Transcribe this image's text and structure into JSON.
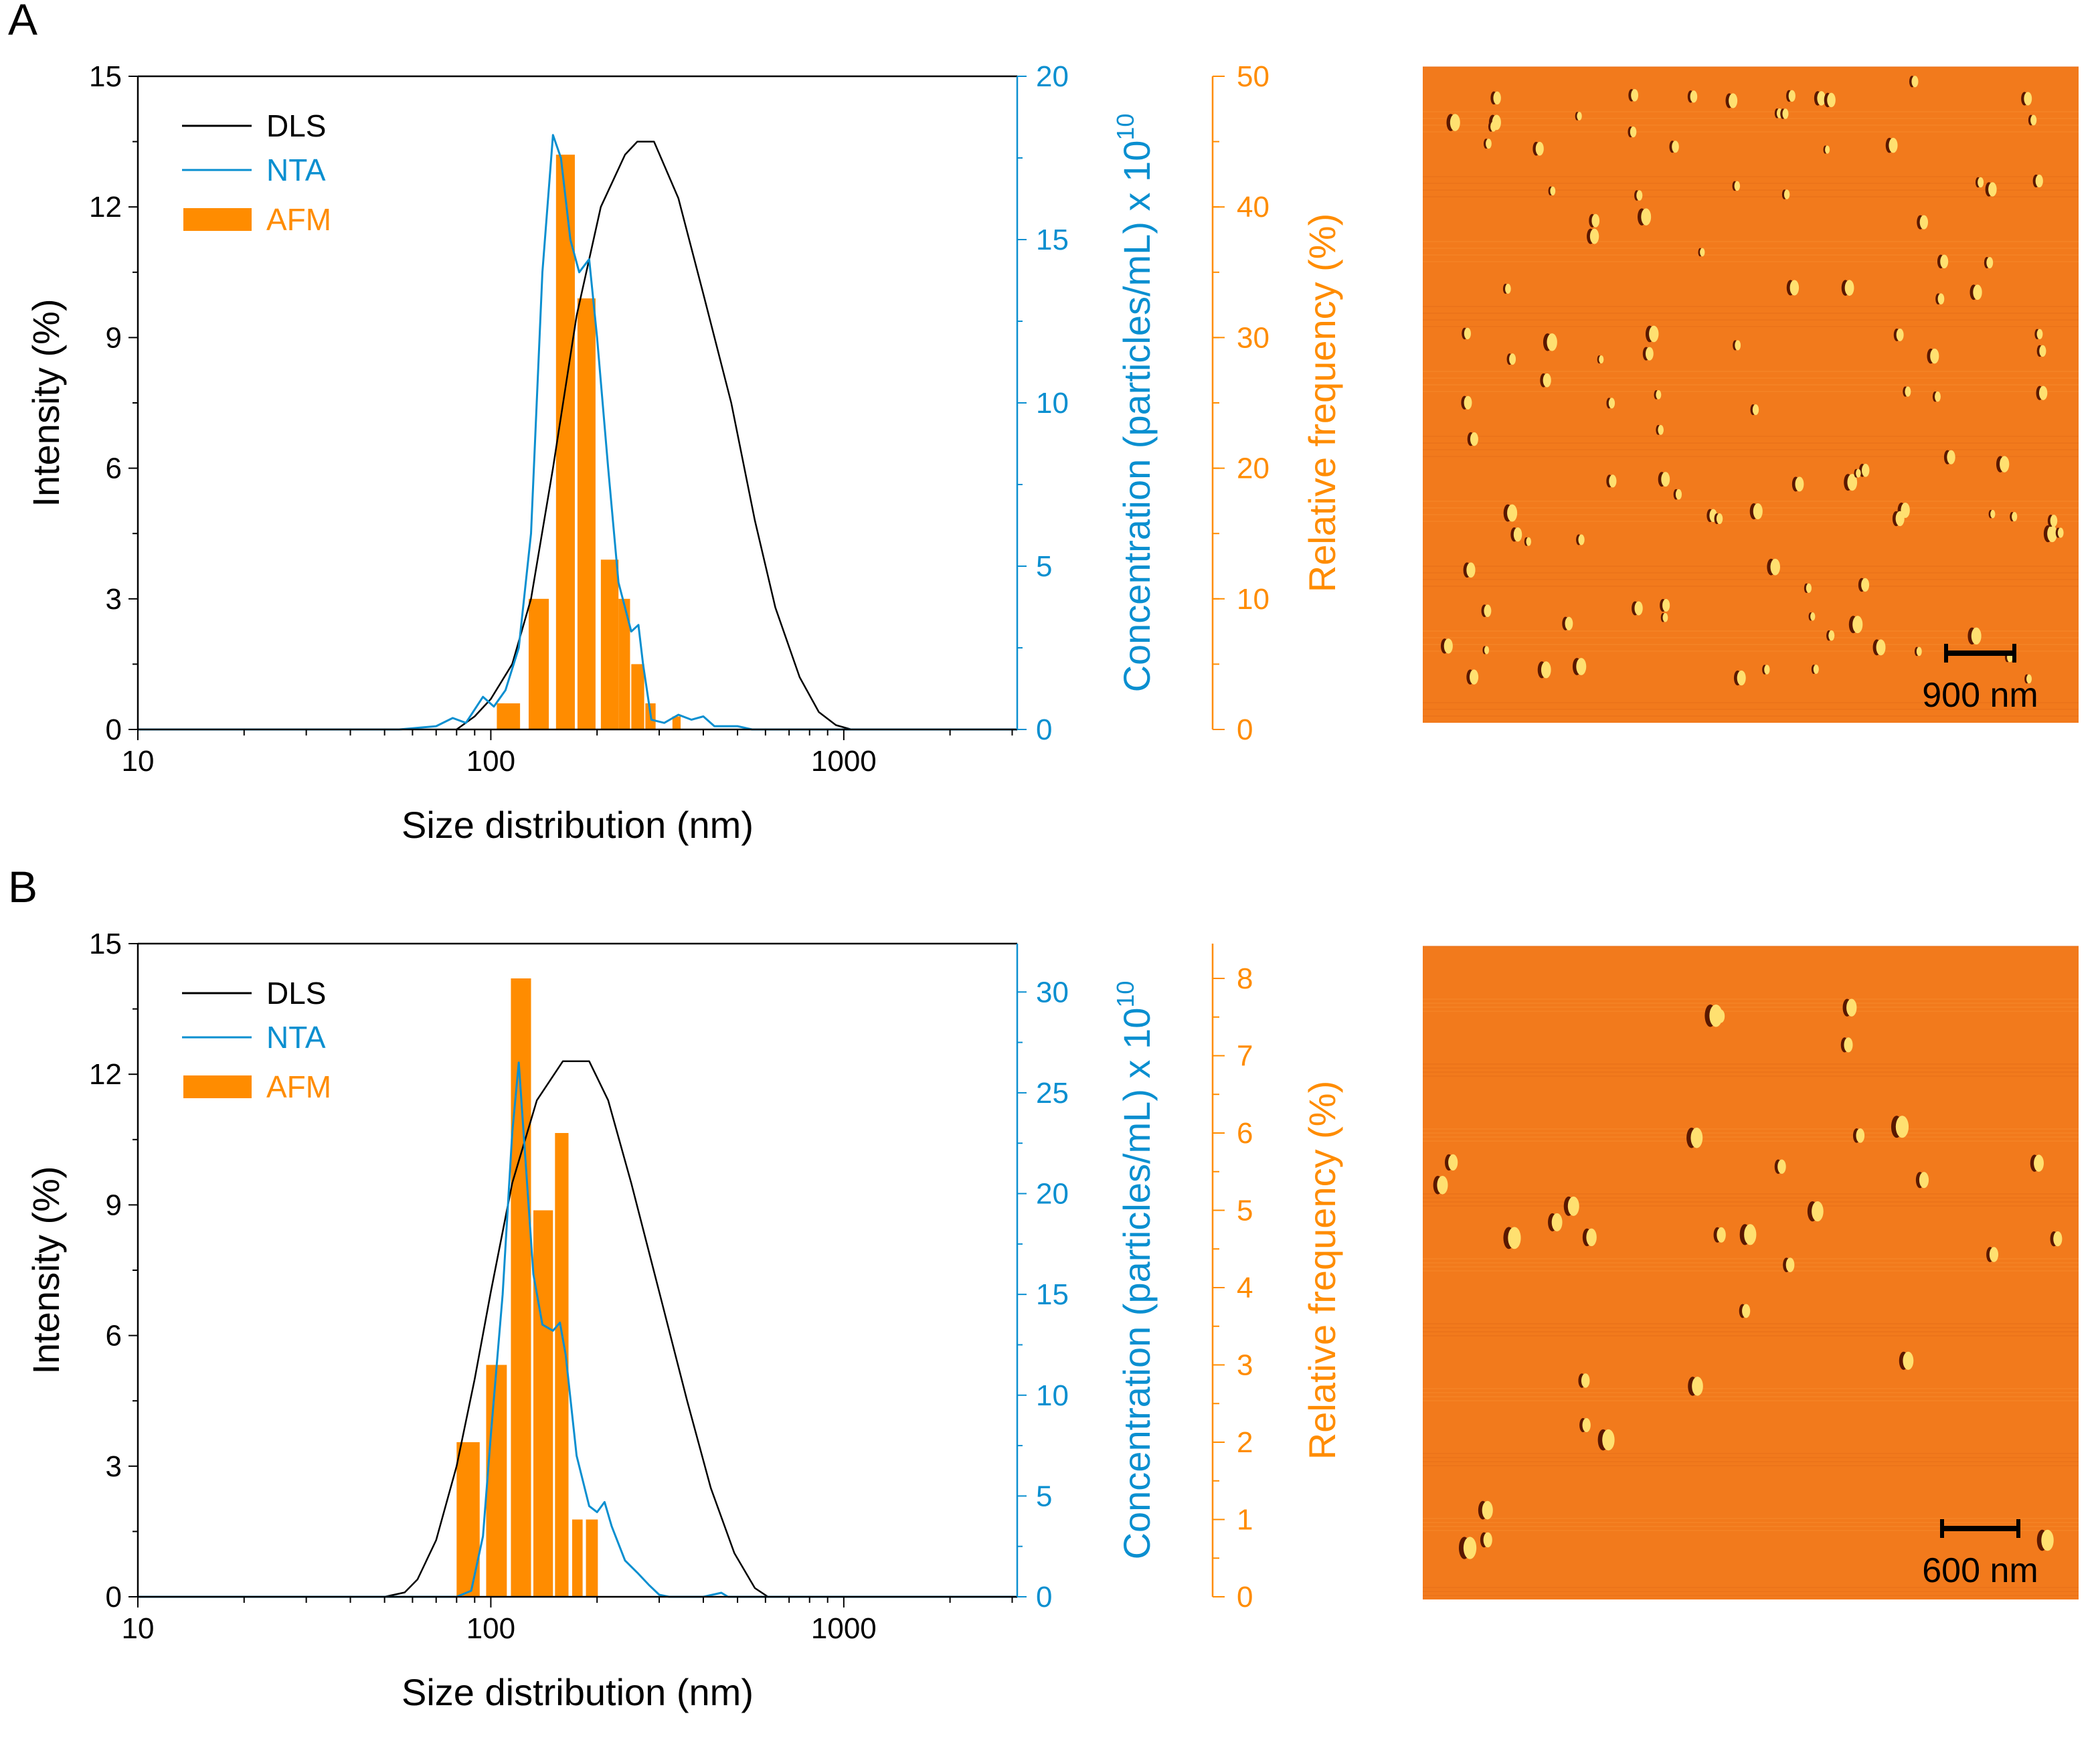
{
  "colors": {
    "dls": "#000000",
    "nta": "#0a8fd0",
    "afm": "#ff8c00",
    "afm_image": "#f27a1c"
  },
  "chart_data": [
    {
      "panel_label": "A",
      "type": "line+bar",
      "xlabel": "Size distribution (nm)",
      "xscale": "log",
      "xlim": [
        10,
        3100
      ],
      "xticks": [
        "10",
        "100",
        "1000"
      ],
      "ylabel": "Intensity (%)",
      "ylim": [
        0,
        15
      ],
      "yticks": [
        "0",
        "3",
        "6",
        "9",
        "12",
        "15"
      ],
      "y2label": "Concentration (particles/mL) x 10",
      "y2label_exp": "10",
      "y2lim": [
        0,
        20
      ],
      "y2ticks": [
        "0",
        "5",
        "10",
        "15",
        "20"
      ],
      "y3label": "Relative frequency (%)",
      "y3lim": [
        0,
        50
      ],
      "y3ticks": [
        "0",
        "10",
        "20",
        "30",
        "40",
        "50"
      ],
      "y3minor": 5,
      "legend": {
        "placement": "top-left",
        "entries": [
          "DLS",
          "NTA",
          "AFM"
        ]
      },
      "series": [
        {
          "name": "DLS",
          "axis": "y",
          "x": [
            80,
            90,
            100,
            115,
            130,
            150,
            175,
            205,
            240,
            260,
            290,
            340,
            400,
            480,
            560,
            640,
            750,
            850,
            950,
            1050
          ],
          "y": [
            0,
            0.3,
            0.7,
            1.5,
            3,
            6,
            9.5,
            12,
            13.2,
            13.5,
            13.5,
            12.2,
            10,
            7.5,
            4.8,
            2.8,
            1.2,
            0.4,
            0.1,
            0
          ]
        },
        {
          "name": "NTA",
          "axis": "y2",
          "x": [
            10,
            55,
            70,
            78,
            85,
            95,
            102,
            110,
            120,
            130,
            140,
            150,
            158,
            168,
            178,
            190,
            200,
            215,
            230,
            250,
            262,
            270,
            285,
            310,
            340,
            370,
            400,
            430,
            500,
            550,
            3100
          ],
          "y": [
            0,
            0,
            0.1,
            0.35,
            0.2,
            1.0,
            0.7,
            1.2,
            2.5,
            6,
            14,
            18.2,
            17.5,
            15,
            14,
            14.4,
            12,
            8,
            4.5,
            3.0,
            3.2,
            2.0,
            0.3,
            0.2,
            0.45,
            0.3,
            0.4,
            0.1,
            0.1,
            0,
            0
          ]
        },
        {
          "name": "AFM",
          "axis": "y3",
          "bins": [
            [
              104,
              121
            ],
            [
              128,
              146
            ],
            [
              153,
              173
            ],
            [
              176,
              198
            ],
            [
              205,
              230
            ],
            [
              230,
              248
            ],
            [
              250,
              272
            ],
            [
              274,
              293
            ],
            [
              327,
              345
            ]
          ],
          "values": [
            2,
            10,
            44,
            33,
            13,
            10,
            5,
            2,
            1
          ]
        }
      ],
      "afm_image": {
        "scale_bar_label": "900 nm"
      }
    },
    {
      "panel_label": "B",
      "type": "line+bar",
      "xlabel": "Size distribution (nm)",
      "xscale": "log",
      "xlim": [
        10,
        3100
      ],
      "xticks": [
        "10",
        "100",
        "1000"
      ],
      "ylabel": "Intensity (%)",
      "ylim": [
        0,
        15
      ],
      "yticks": [
        "0",
        "3",
        "6",
        "9",
        "12",
        "15"
      ],
      "y2label": "Concentration (particles/mL) x 10",
      "y2label_exp": "10",
      "y2lim": [
        0,
        32.4
      ],
      "y2ticks": [
        "0",
        "5",
        "10",
        "15",
        "20",
        "25",
        "30"
      ],
      "y3label": "Relative frequency (%)",
      "y3lim": [
        0,
        8.45
      ],
      "y3ticks": [
        "0",
        "1",
        "2",
        "3",
        "4",
        "5",
        "6",
        "7",
        "8"
      ],
      "y3minor": 0.5,
      "legend": {
        "placement": "top-left",
        "entries": [
          "DLS",
          "NTA",
          "AFM"
        ]
      },
      "series": [
        {
          "name": "DLS",
          "axis": "y",
          "x": [
            10,
            50,
            57,
            62,
            70,
            80,
            90,
            100,
            115,
            135,
            160,
            190,
            215,
            250,
            300,
            360,
            420,
            490,
            560,
            610,
            3100
          ],
          "y": [
            0,
            0,
            0.1,
            0.4,
            1.3,
            3,
            5,
            7,
            9.5,
            11.4,
            12.3,
            12.3,
            11.4,
            9.5,
            7,
            4.5,
            2.5,
            1,
            0.2,
            0,
            0
          ]
        },
        {
          "name": "NTA",
          "axis": "y2",
          "x": [
            10,
            80,
            88,
            95,
            100,
            108,
            115,
            120,
            125,
            132,
            140,
            150,
            157,
            163,
            175,
            190,
            200,
            210,
            220,
            240,
            260,
            280,
            300,
            320,
            400,
            450,
            470,
            3100
          ],
          "y": [
            0,
            0,
            0.3,
            3,
            8,
            15,
            23,
            26.5,
            22,
            16,
            13.5,
            13.2,
            13.6,
            12,
            7,
            4.5,
            4.2,
            4.7,
            3.5,
            1.8,
            1.2,
            0.6,
            0.1,
            0,
            0,
            0.2,
            0,
            0
          ]
        },
        {
          "name": "AFM",
          "axis": "y3",
          "bins": [
            [
              80,
              93
            ],
            [
              97,
              111
            ],
            [
              114,
              130
            ],
            [
              132,
              150
            ],
            [
              152,
              166
            ],
            [
              170,
              182
            ],
            [
              186,
              201
            ]
          ],
          "values": [
            2,
            3,
            8,
            5,
            6,
            1,
            1
          ]
        }
      ],
      "afm_image": {
        "scale_bar_label": "600 nm"
      }
    }
  ]
}
